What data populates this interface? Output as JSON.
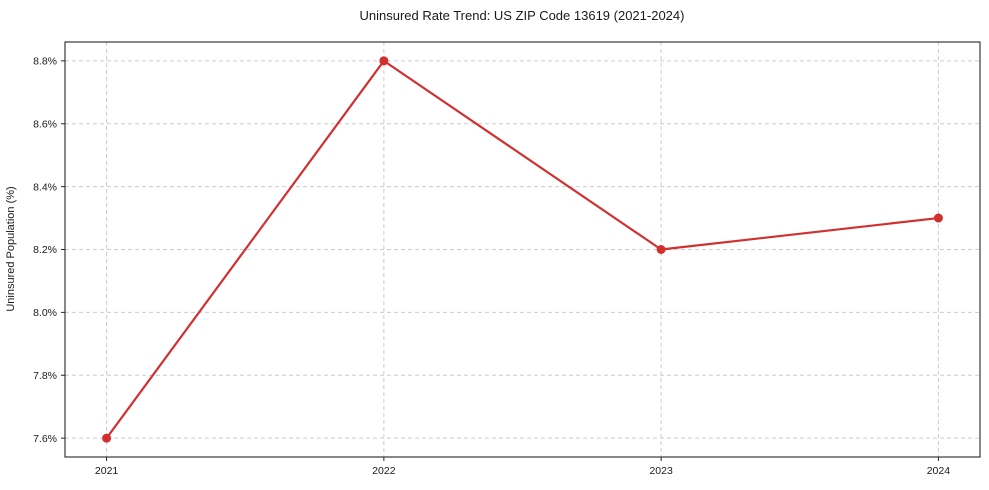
{
  "figure": {
    "background": "#ffffff"
  },
  "chart_data": {
    "type": "line",
    "title": "Uninsured Rate Trend: US ZIP Code 13619 (2021-2024)",
    "xlabel": "",
    "ylabel": "Uninsured Population (%)",
    "x": [
      2021,
      2022,
      2023,
      2024
    ],
    "x_tick_labels": [
      "2021",
      "2022",
      "2023",
      "2024"
    ],
    "series": [
      {
        "name": "Uninsured Population (%)",
        "values": [
          7.6,
          8.8,
          8.2,
          8.3
        ]
      }
    ],
    "y_tick_values": [
      7.6,
      7.8,
      8.0,
      8.2,
      8.4,
      8.6,
      8.8
    ],
    "y_tick_labels": [
      "7.6%",
      "7.8%",
      "8.0%",
      "8.2%",
      "8.4%",
      "8.6%",
      "8.8%"
    ],
    "xlim": [
      2020.85,
      2024.15
    ],
    "ylim": [
      7.54,
      8.86
    ],
    "grid": true,
    "grid_style": "dashed",
    "legend": "none",
    "colors": {
      "line": "#d32f2f",
      "marker": "#d32f2f",
      "grid": "#cccccc",
      "axis": "#262626",
      "text": "#1a1a1a"
    }
  }
}
